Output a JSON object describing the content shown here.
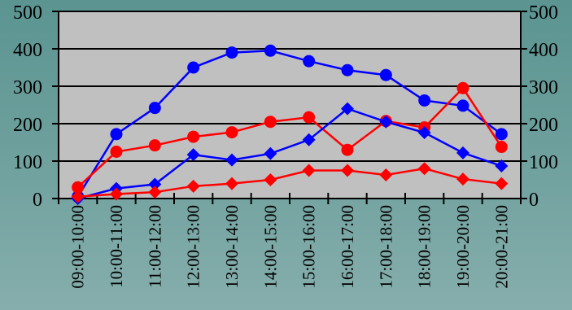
{
  "chart_data": {
    "type": "line",
    "title": "",
    "xlabel": "",
    "ylabel": "",
    "ylim": [
      0,
      500
    ],
    "grid": true,
    "legend": "none",
    "yticks": [
      "0",
      "100",
      "200",
      "300",
      "400",
      "500"
    ],
    "categories": [
      "09:00-10:00",
      "10:00-11:00",
      "11:00-12:00",
      "12:00-13:00",
      "13:00-14:00",
      "14:00-15:00",
      "15:00-16:00",
      "16:00-17:00",
      "17:00-18:00",
      "18:00-19:00",
      "19:00-20:00",
      "20:00-21:00"
    ],
    "series": [
      {
        "color": "#0000ff",
        "marker": "circle",
        "values": [
          5,
          172,
          242,
          350,
          390,
          395,
          367,
          343,
          330,
          262,
          248,
          172
        ]
      },
      {
        "color": "#ff0000",
        "marker": "circle",
        "values": [
          30,
          125,
          142,
          165,
          177,
          205,
          217,
          130,
          207,
          190,
          295,
          138
        ]
      },
      {
        "color": "#0000ff",
        "marker": "diamond",
        "values": [
          0,
          27,
          38,
          117,
          103,
          120,
          157,
          240,
          205,
          176,
          122,
          87
        ]
      },
      {
        "color": "#ff0000",
        "marker": "diamond",
        "values": [
          5,
          12,
          17,
          33,
          40,
          50,
          75,
          75,
          63,
          80,
          52,
          40
        ]
      }
    ]
  }
}
